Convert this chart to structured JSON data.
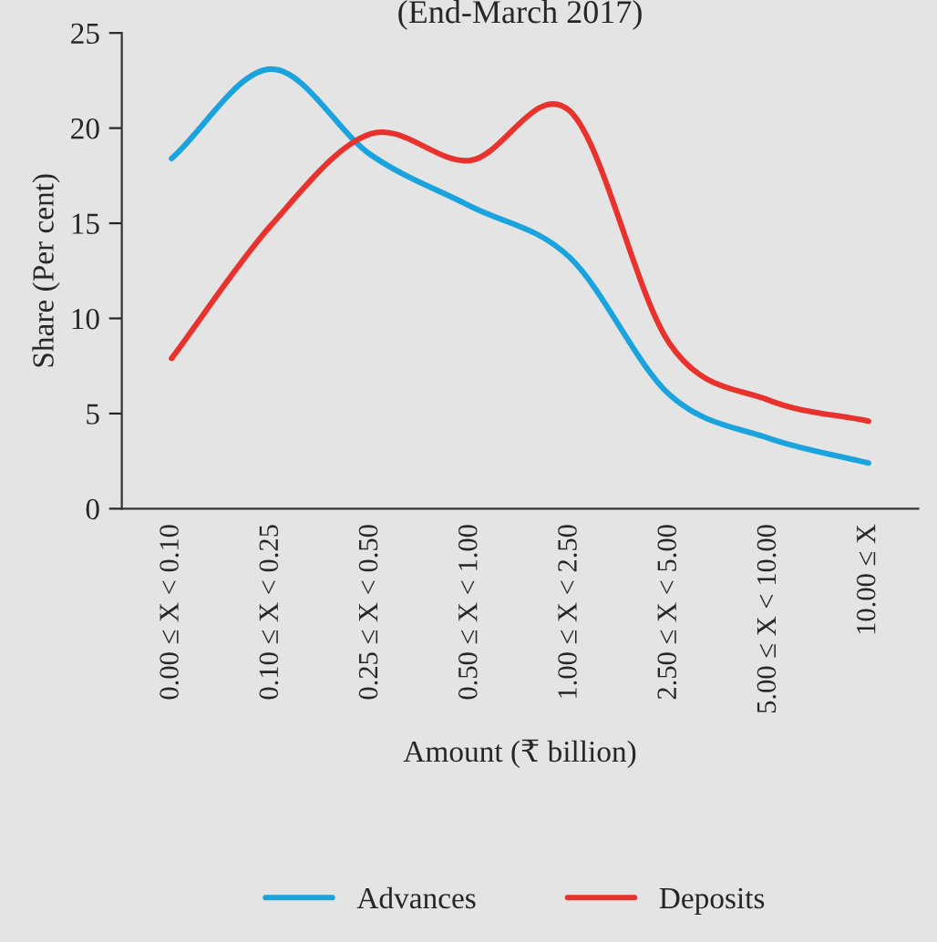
{
  "chart_data": {
    "type": "line",
    "title": "(End-March 2017)",
    "xlabel": "Amount (₹ billion)",
    "ylabel": "Share (Per cent)",
    "categories": [
      "0.00 ≤ X < 0.10",
      "0.10 ≤ X < 0.25",
      "0.25 ≤ X < 0.50",
      "0.50 ≤ X < 1.00",
      "1.00 ≤ X < 2.50",
      "2.50 ≤ X < 5.00",
      "5.00 ≤ X < 10.00",
      "10.00 ≤ X"
    ],
    "series": [
      {
        "name": "Advances",
        "color": "#1aa3dc",
        "values": [
          18.4,
          23.1,
          18.6,
          15.9,
          13.2,
          6.0,
          3.7,
          2.4
        ]
      },
      {
        "name": "Deposits",
        "color": "#e8322d",
        "values": [
          7.9,
          14.9,
          19.7,
          18.3,
          20.9,
          8.7,
          5.7,
          4.6
        ]
      }
    ],
    "ylim": [
      0,
      25
    ],
    "yticks": [
      0,
      5,
      10,
      15,
      20,
      25
    ],
    "grid": false,
    "legend": "bottom",
    "marker": "none",
    "line_style": "solid"
  }
}
